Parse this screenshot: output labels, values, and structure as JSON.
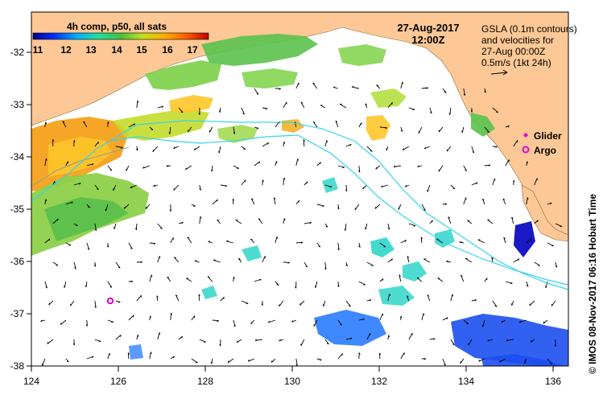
{
  "map": {
    "composite_label": "4h comp, p50, all sats",
    "date": "27-Aug-2017",
    "time": "12:00Z",
    "gsla_lines": [
      "GSLA (0.1m contours)",
      "and velocities for",
      "27-Aug 00:00Z",
      "0.5m/s (1kt 24h)"
    ],
    "credit": "© IMOS 08-Nov-2017 06:16 Hobart Time",
    "colorbar": {
      "ticks": [
        "11",
        "12",
        "13",
        "14",
        "15",
        "16",
        "17"
      ],
      "colors": [
        "#00008f",
        "#0030ff",
        "#00b0ff",
        "#20e0a0",
        "#40c040",
        "#c0e020",
        "#ffb000",
        "#ff6000",
        "#c00000"
      ]
    },
    "x_ticks": [
      "124",
      "126",
      "128",
      "130",
      "132",
      "134",
      "136"
    ],
    "y_ticks": [
      "-32",
      "-33",
      "-34",
      "-35",
      "-36",
      "-37",
      "-38"
    ],
    "legend": {
      "glider": "Glider",
      "argo": "Argo"
    },
    "colors": {
      "land": "#fdc895",
      "contour": "#33d5ee",
      "glider": "#e000e0",
      "argo": "#e000e0"
    }
  }
}
